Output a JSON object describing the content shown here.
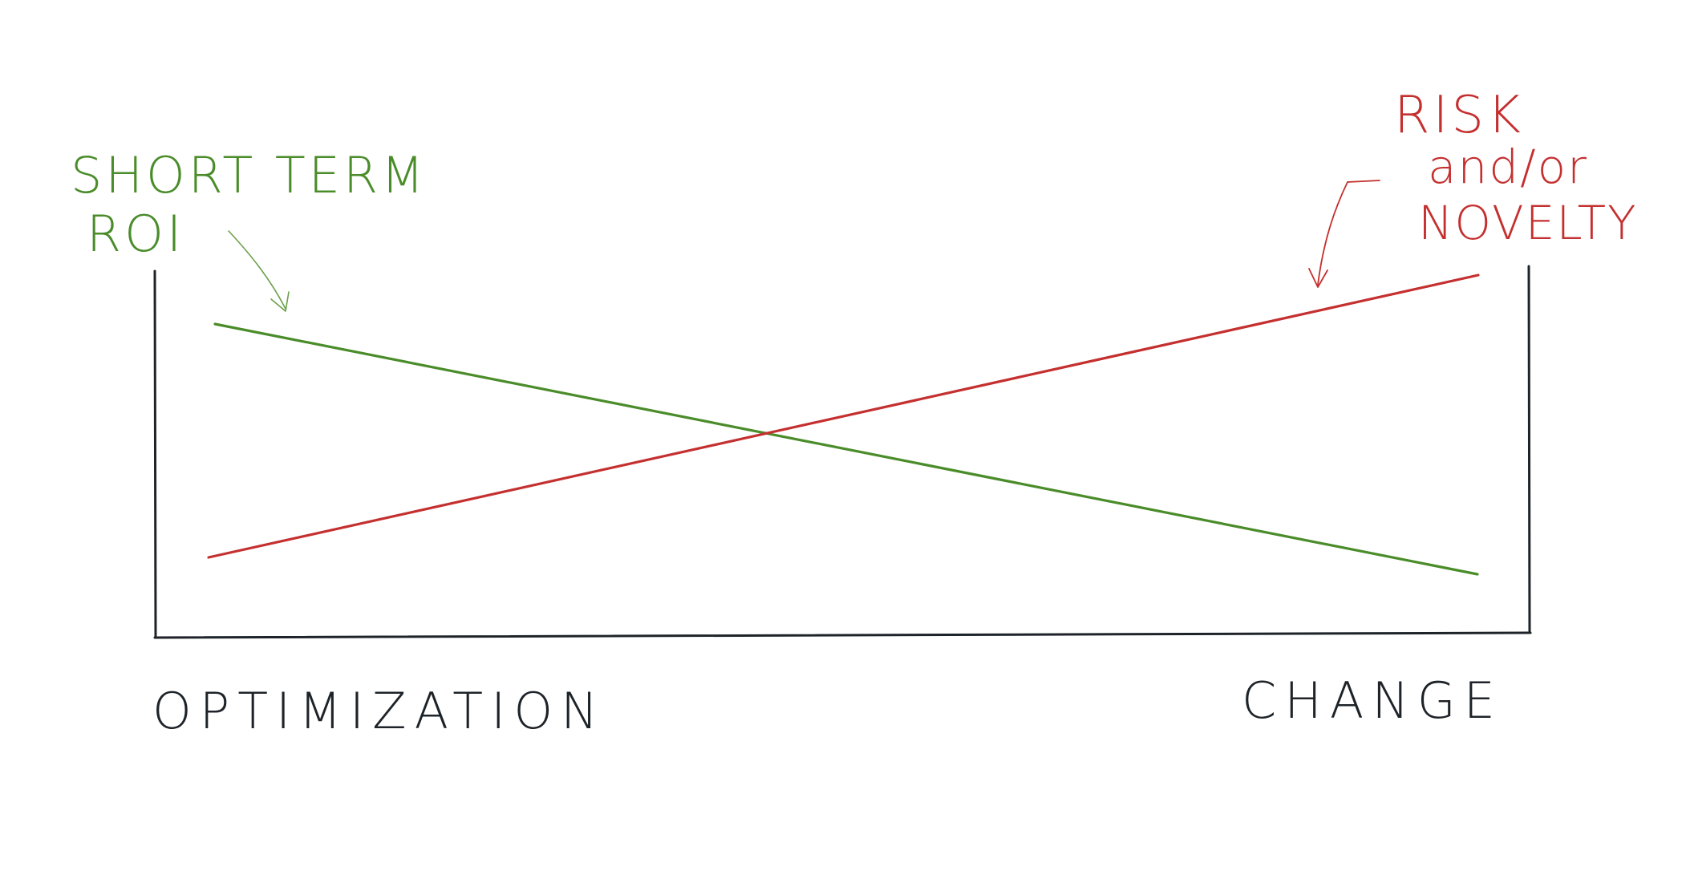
{
  "diagram": {
    "frame_color": "#1d2328",
    "series": [
      {
        "key": "short-term-roi",
        "label_lines": [
          "SHORT TERM",
          "ROI"
        ],
        "color": "#4a8c2a",
        "trend": "decreasing"
      },
      {
        "key": "risk-novelty",
        "label_lines": [
          "RISK",
          "and/or",
          "NOVELTY"
        ],
        "color": "#c4302f",
        "trend": "increasing"
      }
    ],
    "axis": {
      "left_label": "OPTIMIZATION",
      "right_label": "CHANGE"
    }
  }
}
